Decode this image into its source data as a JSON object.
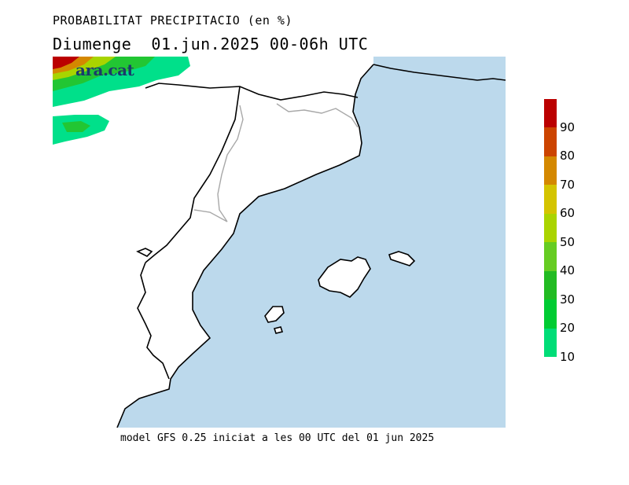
{
  "header": {
    "title": "PROBABILITAT PRECIPITACIO (en %)",
    "subtitle": "Diumenge  01.jun.2025 00-06h UTC"
  },
  "footer": {
    "text": "model GFS 0.25 iniciat a les 00 UTC del 01 jun 2025"
  },
  "watermark": {
    "text": "ara.cat"
  },
  "colors": {
    "sea": "#bcd9ec",
    "land": "#ffffff",
    "coast": "#000000",
    "border": "#a8a8a8"
  },
  "legend": {
    "levels": [
      {
        "value": "10",
        "color": "#00dd77"
      },
      {
        "value": "20",
        "color": "#00cc33"
      },
      {
        "value": "30",
        "color": "#22bb22"
      },
      {
        "value": "40",
        "color": "#66cc22"
      },
      {
        "value": "50",
        "color": "#aad400"
      },
      {
        "value": "60",
        "color": "#d4c400"
      },
      {
        "value": "70",
        "color": "#d48800"
      },
      {
        "value": "80",
        "color": "#cc4400"
      },
      {
        "value": "90",
        "color": "#bb0000"
      }
    ],
    "top_color": "#bb0000"
  }
}
